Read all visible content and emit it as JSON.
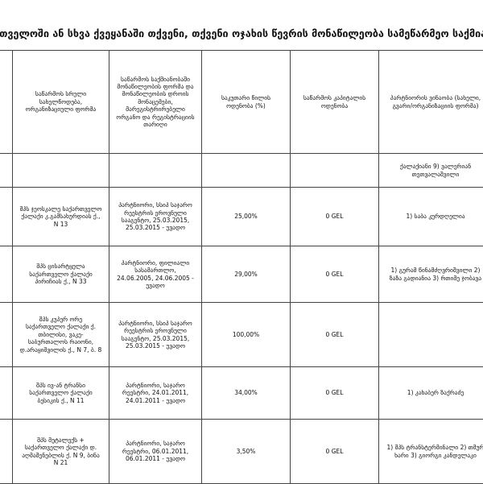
{
  "header": {
    "title": "რთველოში ან სხვა ქვეყანაში თქვენი, თქვენი ოჯახის წევრის მონაწილეობა სამეწარმეო საქმიან"
  },
  "table": {
    "headers": [
      "საწარმოს სრული სახელწოდება, ორგანიზაციული ფორმა",
      "საწარმოს საქმიანობაში მონაწილეობის ფორმა და მონაწილეობის დროის მონაცემები, მარეგისტრირებელი ორგანო და რეგისტრაციის თარიღი",
      "საკუთარი წილის ოდენობა (%)",
      "საწარმოს კაპიტალის ოდენობა",
      "პარტნიორის ვინაობა (სახელი, გვარი/ორგანიზაციის ფორმა)"
    ],
    "rows": [
      {
        "partners": "ქალაქიანი 9) ვალერიან თეთვალაშვილი"
      },
      {
        "name": "შპს ჯეოსკალე საქართველო ქალაქი კ.გამსახურდიას ქ., N 13",
        "participation": "პარტნიორი, სსიპ საჯარო რეესტრის ეროვნული სააგენტო, 25.03.2015, 25.03.2015 - უვადო",
        "share": "25,00%",
        "capital": "0 GEL",
        "partners": "1) საბა კურდღელია"
      },
      {
        "name": "შპს ცისარტყელა საქართველო ქალაქი პირიჩიას ქ., N 33",
        "participation": "პარტნიორი, ფილიალი სასამართლო, 24.06.2005, 24.06.2005 - უვადო",
        "share": "29,00%",
        "capital": "0 GEL",
        "partners": "1) გურამ წინამძღვრიშვილი 2) ზაზა გადიანია 3) რთიმე ჯობავა"
      },
      {
        "name": "შპს კუპერ ორე საქართველო ქალაქი ქ. თბილისი, ვაკე-საბურთალოს რაიონი, დ.არაყიშვილის ქ., N 7, ბ. 8",
        "participation": "პარტნიორი, სსიპ საჯარო რეესტრის ეროვნული სააგენტო, 25.03.2015, 25.03.2015 - უვადო",
        "share": "100,00%",
        "capital": "0 GEL"
      },
      {
        "name": "შპს ივ-ან ტრანსი საქართველო ქალაქი ბესიკის ქ., N 11",
        "participation": "პარტნიორი, საჯარო რეესტრი, 24.01.2011, 24.01.2011 - უვადო",
        "share": "34,00%",
        "capital": "0 GEL",
        "partners": "1) კახაბერ ზაქრაძე"
      },
      {
        "name": "შპს მეტალექს + საქართველო ქალაქი დ. აღმაშენებლის ქ. N 9, ბინა N 21",
        "participation": "პარტნიორი, საჯარო რეესტრი, 06.01.2011, 06.01.2011 - უვადო",
        "share": "3,50%",
        "capital": "0 GEL",
        "partners": "1) შპს ტრანსტერმინალი 2) თმურ ხარი 3) გიორგი კანდელაკი"
      }
    ]
  }
}
